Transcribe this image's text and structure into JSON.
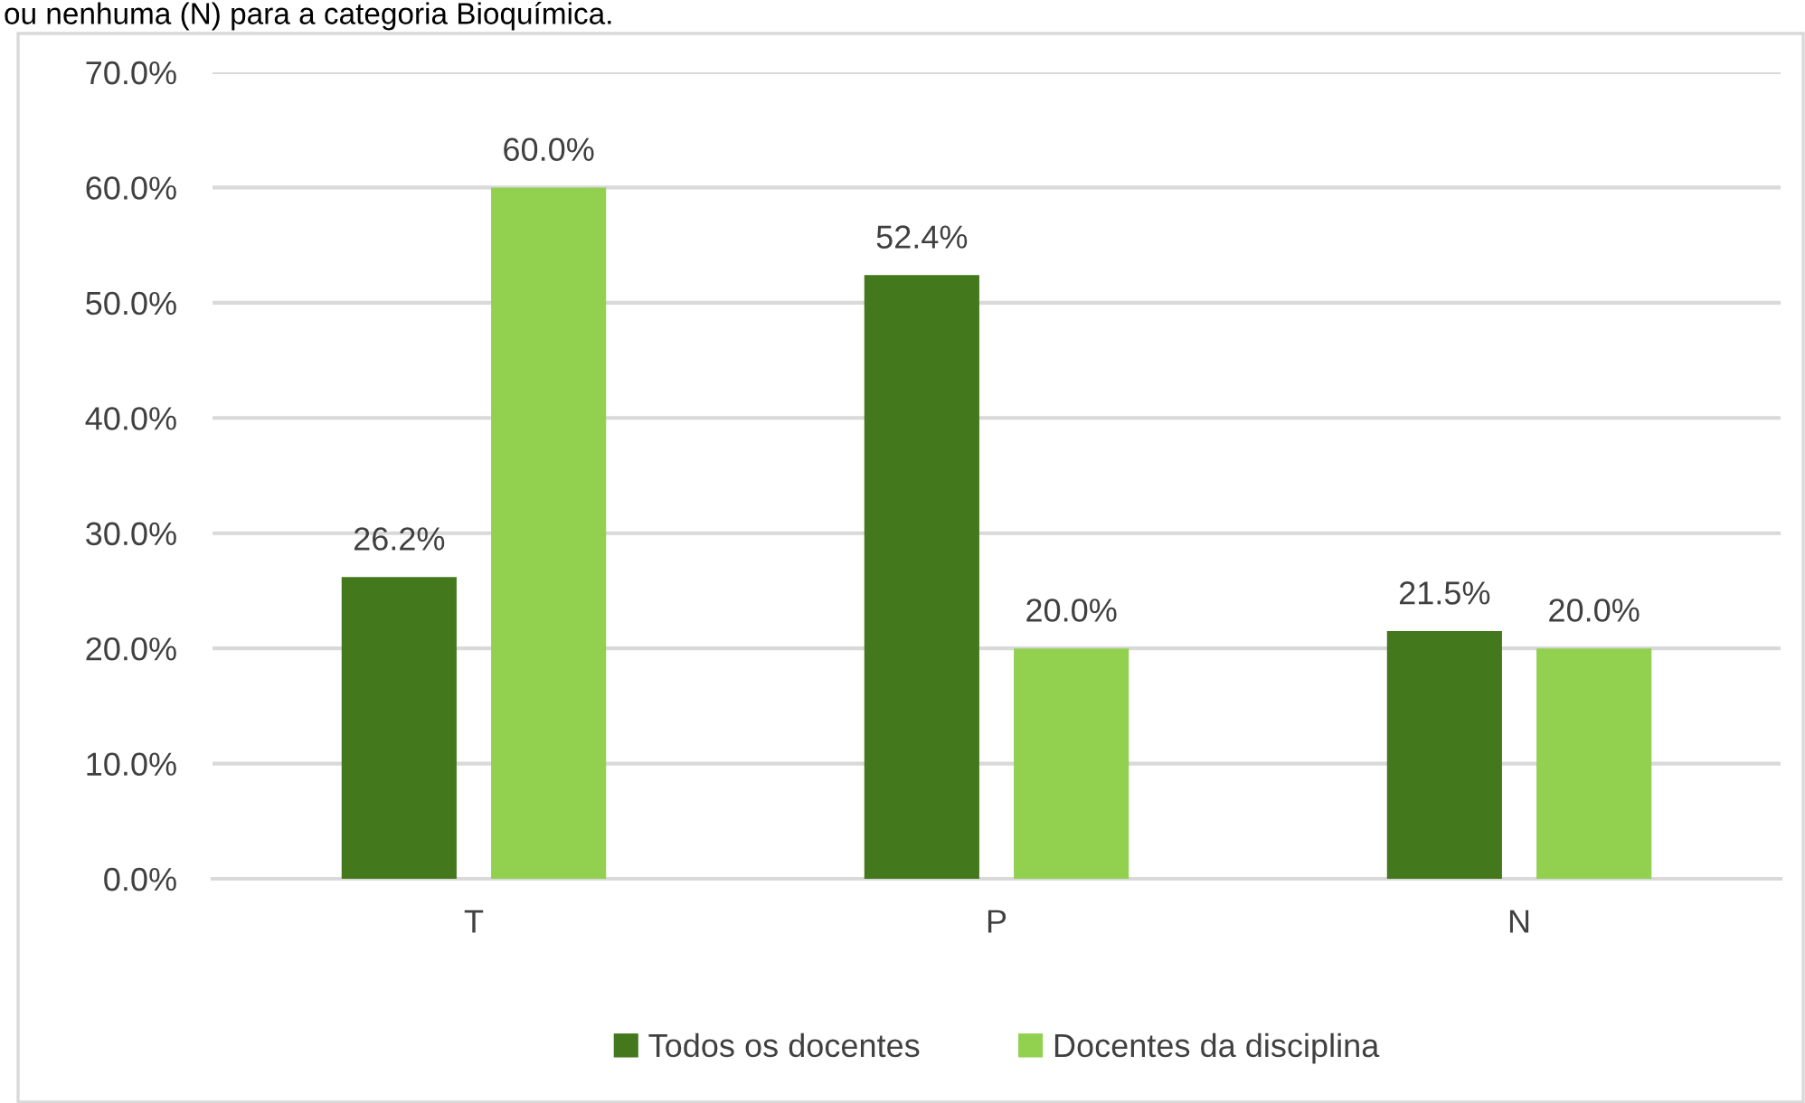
{
  "chart_data": {
    "type": "bar",
    "annotations": [
      "ou nenhuma (N) para a categoria Bioquímica."
    ],
    "categories": [
      "T",
      "P",
      "N"
    ],
    "series": [
      {
        "name": "Todos os docentes",
        "color": "#43781c",
        "values": [
          26.2,
          52.4,
          21.5
        ],
        "value_labels": [
          "26.2%",
          "52.4%",
          "21.5%"
        ]
      },
      {
        "name": "Docentes da disciplina",
        "color": "#92d050",
        "values": [
          60.0,
          20.0,
          20.0
        ],
        "value_labels": [
          "60.0%",
          "20.0%",
          "20.0%"
        ]
      }
    ],
    "ylim": [
      0,
      70
    ],
    "yticks": [
      {
        "value": 0,
        "label": "0.0%"
      },
      {
        "value": 10,
        "label": "10.0%"
      },
      {
        "value": 20,
        "label": "20.0%"
      },
      {
        "value": 30,
        "label": "30.0%"
      },
      {
        "value": 40,
        "label": "40.0%"
      },
      {
        "value": 50,
        "label": "50.0%"
      },
      {
        "value": 60,
        "label": "60.0%"
      },
      {
        "value": 70,
        "label": "70.0%"
      }
    ],
    "grid": "y",
    "legend": "bottom"
  }
}
